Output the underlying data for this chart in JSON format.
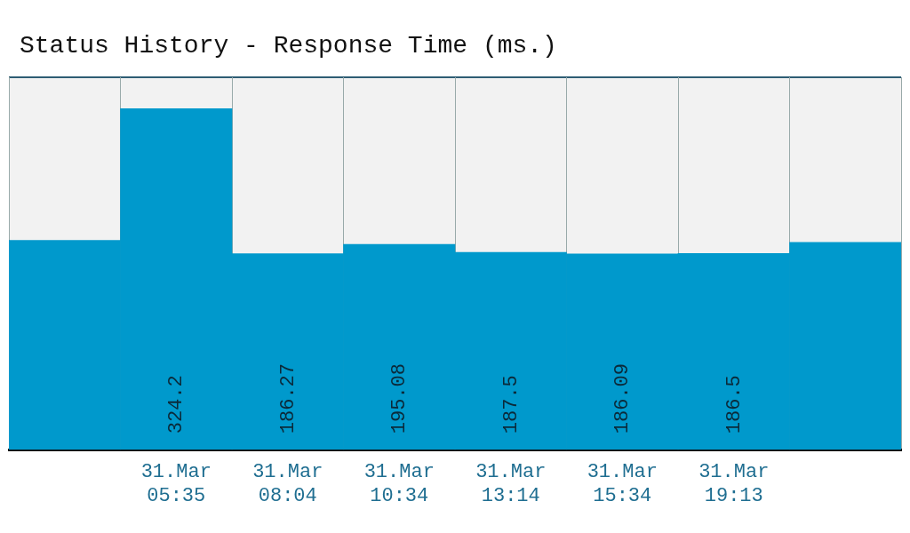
{
  "chart_data": {
    "type": "bar",
    "title": "Status History - Response Time (ms.)",
    "categories": [
      null,
      "31.Mar 05:35",
      "31.Mar 08:04",
      "31.Mar 10:34",
      "31.Mar 13:14",
      "31.Mar 15:34",
      "31.Mar 19:13",
      null
    ],
    "values": [
      199,
      324.2,
      186.27,
      195.08,
      187.5,
      186.09,
      186.5,
      197
    ],
    "value_labels": [
      null,
      "324.2",
      "186.27",
      "195.08",
      "187.5",
      "186.09",
      "186.5",
      null
    ],
    "color": "#0099cc",
    "ylim": [
      0,
      354
    ],
    "tick_labels": "x",
    "grid": "x"
  }
}
